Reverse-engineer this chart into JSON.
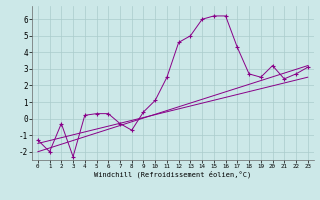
{
  "x_main": [
    0,
    1,
    2,
    3,
    4,
    5,
    6,
    7,
    8,
    9,
    10,
    11,
    12,
    13,
    14,
    15,
    16,
    17,
    18,
    19,
    20,
    21,
    22,
    23
  ],
  "y_main": [
    -1.3,
    -2.0,
    -0.3,
    -2.3,
    0.2,
    0.3,
    0.3,
    -0.3,
    -0.7,
    0.4,
    1.1,
    2.5,
    4.6,
    5.0,
    6.0,
    6.2,
    6.2,
    4.3,
    2.7,
    2.5,
    3.2,
    2.4,
    2.7,
    3.1
  ],
  "line1_x": [
    0,
    23
  ],
  "line1_y": [
    -2.0,
    3.2
  ],
  "line2_x": [
    0,
    23
  ],
  "line2_y": [
    -1.5,
    2.5
  ],
  "color": "#880088",
  "bg_color": "#cce8e8",
  "grid_color": "#aacccc",
  "xlabel": "Windchill (Refroidissement éolien,°C)",
  "xlim": [
    -0.5,
    23.5
  ],
  "ylim": [
    -2.5,
    6.8
  ],
  "yticks": [
    -2,
    -1,
    0,
    1,
    2,
    3,
    4,
    5,
    6
  ],
  "xticks": [
    0,
    1,
    2,
    3,
    4,
    5,
    6,
    7,
    8,
    9,
    10,
    11,
    12,
    13,
    14,
    15,
    16,
    17,
    18,
    19,
    20,
    21,
    22,
    23
  ]
}
